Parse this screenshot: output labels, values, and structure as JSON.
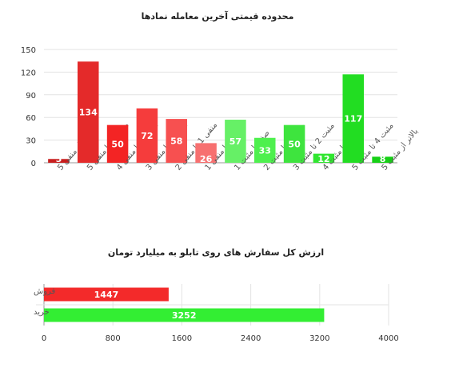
{
  "chart_data": [
    {
      "type": "bar",
      "title": "محدوده قیمتی آخرین معامله نمادها",
      "categories": [
        "پایینتر از منفی 5",
        "منفی 4 تا منفی 5",
        "منفی 3 تا منفی 4",
        "منفی 2 تا منفی 3",
        "منفی 1 تا منفی 2",
        "صفر تا منفی 1",
        "صفر تا مثبت 1",
        "مثبت 1 تا مثبت 2",
        "مثبت 2 تا مثبت 3",
        "مثبت 3 تا مثبت 4",
        "مثبت 4 تا مثبت 5",
        "بالاتر از مثبت 5"
      ],
      "values": [
        5,
        134,
        50,
        72,
        58,
        26,
        57,
        33,
        50,
        12,
        117,
        8
      ],
      "colors": [
        "#c81e1e",
        "#e42a2a",
        "#f32424",
        "#f53c3c",
        "#f75050",
        "#f77070",
        "#66f066",
        "#4ef04e",
        "#3ee43e",
        "#30e630",
        "#22dd22",
        "#16d016"
      ],
      "yticks": [
        "0",
        "30",
        "60",
        "90",
        "120",
        "150"
      ],
      "ylim": [
        0,
        150
      ],
      "grid": true
    },
    {
      "type": "bar",
      "orientation": "horizontal",
      "title": "ارزش کل سفارش های روی تابلو به میلیارد تومان",
      "categories": [
        "فروش",
        "خرید"
      ],
      "values": [
        1447,
        3252
      ],
      "colors": [
        "#f32a2a",
        "#33ee33"
      ],
      "xticks": [
        "0",
        "800",
        "1600",
        "2400",
        "3200",
        "4000"
      ],
      "xlim": [
        0,
        4000
      ],
      "grid": true
    }
  ]
}
